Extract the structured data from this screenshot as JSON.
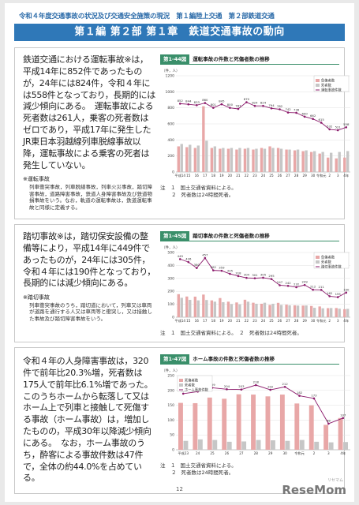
{
  "header": {
    "text": "令和４年度交通事故の状況及び交通安全施策の現況　第１編陸上交通　第２部鉄道交通"
  },
  "title": "第１編 第２部 第１章　鉄道交通事故の動向",
  "section1": {
    "para": "鉄道交通における運転事故※は，平成14年に852件であったものが，24年には824件，令和４年には558件となっており，長期的には減少傾向にある。　運転事故による死者数は261人，乗客の死者数はゼロであり，平成17年に発生したJR東日本羽越線列車脱線事故以降，運転事故による乗客の死者は発生していない。",
    "note_head": "※運転事故",
    "note_body": "列車衝突事故，列車脱線事故，列車火災事故，踏切障害事故，道路障害事故，鉄道人身障害事故及び鉄道物損事故をいう。なお，軌道の運転事故は，鉄道運転事故と同様に定義する。",
    "fig_label": "第1-44図",
    "fig_title": "運転事故の件数と死傷者数の推移",
    "footnotes": [
      {
        "num": "注　１",
        "text": "国土交通省資料による。"
      },
      {
        "num": "２",
        "text": "死者数は24時間死者。"
      }
    ]
  },
  "section2": {
    "para": "踏切事故※は，踏切保安設備の整備等により，平成14年に449件であったものが，24年には305件，令和４年には190件となっており，長期的には減少傾向にある。",
    "note_head": "※踏切事故",
    "note_body": "列車衝突事故のうち，踏切道において，列車又は車両が道路を通行する人又は車両等と衝突し，又は接触した事故及び踏切障害事故をいう。",
    "fig_label": "第1-45図",
    "fig_title": "踏切事故の件数と死傷者数の推移",
    "footnotes": [
      {
        "num": "注　１",
        "text": "国土交通省資料による。　２　死者数は24時間死者。"
      }
    ]
  },
  "section3": {
    "para": "令和４年の人身障害事故は，320件で前年比20.3%増，死者数は175人で前年比6.1%増であった。このうちホームから転落して又はホーム上で列車と接触して死傷する事故（ホーム事故）は，増加したものの，平成30年以降減少傾向にある。　なお，ホーム事故のうち，酔客による事故件数は47件で，全体の約44.0%を占めている。",
    "fig_label": "第1-47図",
    "fig_title": "ホーム事故の件数と死傷者数の推移",
    "footnotes": [
      {
        "num": "注　１",
        "text": "国土交通省資料による。"
      },
      {
        "num": "２",
        "text": "死者数は24時間死者。"
      }
    ]
  },
  "page_number": "12",
  "logo": "ReseMom",
  "logo_small": "リセマム",
  "chart_data": [
    {
      "type": "bar",
      "title": "運転事故の件数と死傷者数の推移",
      "ylabel": "（件，人）",
      "ylim": [
        0,
        1200
      ],
      "yticks": [
        0,
        200,
        400,
        600,
        800,
        1000,
        1200
      ],
      "categories": [
        "平成14",
        "15",
        "16",
        "17",
        "18",
        "19",
        "20",
        "21",
        "22",
        "23",
        "24",
        "25",
        "26",
        "27",
        "28",
        "29",
        "30",
        "令和元",
        "2",
        "3",
        "4年"
      ],
      "series": [
        {
          "name": "負傷者数",
          "values": [
            320,
            310,
            300,
            820,
            300,
            290,
            290,
            280,
            290,
            280,
            300,
            320,
            300,
            280,
            270,
            260,
            250,
            230,
            180,
            170,
            180
          ],
          "color": "#e8a7a7"
        },
        {
          "name": "死者数",
          "values": [
            350,
            340,
            330,
            390,
            320,
            300,
            300,
            300,
            300,
            290,
            290,
            300,
            290,
            280,
            280,
            270,
            260,
            250,
            240,
            250,
            261
          ],
          "color": "#c6c6c6"
        },
        {
          "name": "運転事故件数",
          "values": [
            852,
            844,
            833,
            860,
            801,
            845,
            800,
            787,
            870,
            824,
            824,
            794,
            782,
            742,
            738,
            690,
            662,
            615,
            532,
            521,
            558
          ],
          "color": "#8b1a6b"
        }
      ],
      "legend_position": "top-right"
    },
    {
      "type": "bar",
      "title": "踏切事故の件数と死傷者数の推移",
      "ylabel": "（件，人）",
      "ylim": [
        0,
        500
      ],
      "yticks": [
        0,
        100,
        200,
        300,
        400,
        500
      ],
      "categories": [
        "平成14",
        "15",
        "16",
        "17",
        "18",
        "19",
        "20",
        "21",
        "22",
        "23",
        "24",
        "25",
        "26",
        "27",
        "28",
        "29",
        "30",
        "令和元",
        "2",
        "3",
        "4年"
      ],
      "series": [
        {
          "name": "負傷者数",
          "values": [
            178,
            160,
            159,
            175,
            130,
            148,
            120,
            114,
            135,
            112,
            104,
            95,
            111,
            97,
            92,
            90,
            87,
            83,
            70,
            71,
            62
          ],
          "color": "#e8a7a7"
        },
        {
          "name": "死者数",
          "values": [
            150,
            134,
            130,
            133,
            120,
            116,
            102,
            100,
            120,
            104,
            112,
            104,
            95,
            92,
            90,
            91,
            73,
            69,
            71,
            66,
            65
          ],
          "color": "#c6c6c6"
        },
        {
          "name": "踏切事故件数",
          "values": [
            449,
            426,
            380,
            457,
            362,
            359,
            335,
            318,
            304,
            301,
            305,
            295,
            247,
            242,
            232,
            249,
            212,
            211,
            162,
            155,
            190
          ],
          "color": "#8b1a6b"
        }
      ],
      "legend_position": "top-right"
    },
    {
      "type": "bar",
      "title": "ホーム事故の件数と死傷者数の推移",
      "ylabel": "（件，人）",
      "ylim": [
        0,
        250
      ],
      "yticks": [
        0,
        50,
        100,
        150,
        200,
        250
      ],
      "categories": [
        "平成23",
        "24",
        "25",
        "26",
        "27",
        "28",
        "29",
        "30",
        "令和元",
        "2",
        "3",
        "4年"
      ],
      "series": [
        {
          "name": "死傷者数",
          "values": [
            158,
            157,
            176,
            172,
            187,
            186,
            180,
            186,
            156,
            150,
            84,
            107
          ],
          "color": "#e8a7a7"
        },
        {
          "name": "死者数",
          "values": [
            30,
            35,
            33,
            27,
            28,
            33,
            32,
            30,
            33,
            27,
            25,
            26
          ],
          "color": "#c6c6c6"
        },
        {
          "name": "ホーム事故件数",
          "values": [
            189,
            196,
            209,
            204,
            203,
            218,
            202,
            212,
            182,
            173,
            88,
            107
          ],
          "color": "#8b1a6b"
        }
      ],
      "legend_position": "top-left"
    }
  ]
}
